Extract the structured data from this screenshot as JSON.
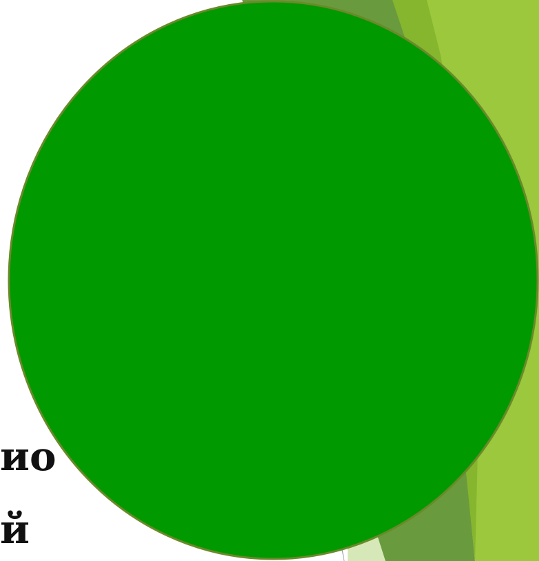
{
  "slide": {
    "text_fragments": [
      "ио",
      "й"
    ]
  },
  "colors": {
    "background": "#ffffff",
    "circle_fill": "#009900",
    "circle_stroke": "#6a8a2a",
    "accent_light": "#9bc83c",
    "accent_mid": "#86b52e",
    "accent_dark": "#6a9a3e",
    "accent_pale": "#d6e8b8"
  }
}
